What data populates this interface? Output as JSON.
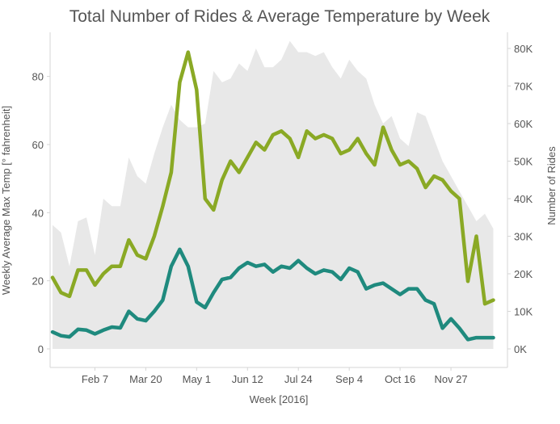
{
  "chart_data": {
    "type": "line",
    "title": "Total Number of Rides & Average Temperature by Week",
    "xlabel": "Week [2016]",
    "ylabel_left": "Weekly Average Max Temp [° fahrenheit]",
    "ylabel_right": "Number of Rides",
    "x_tick_labels": [
      "Feb 7",
      "Mar 20",
      "May 1",
      "Jun 12",
      "Jul 24",
      "Sep 4",
      "Oct 16",
      "Nov 27"
    ],
    "x_tick_weeks": [
      5,
      11,
      17,
      23,
      29,
      35,
      41,
      47
    ],
    "y_left_ticks": [
      0,
      20,
      40,
      60,
      80
    ],
    "y_left_range": [
      0,
      92
    ],
    "y_right_ticks": [
      "0K",
      "10K",
      "20K",
      "30K",
      "40K",
      "50K",
      "60K",
      "70K",
      "80K"
    ],
    "y_right_tick_values": [
      0,
      10000,
      20000,
      30000,
      40000,
      50000,
      60000,
      70000,
      80000
    ],
    "y_right_range": [
      0,
      80000
    ],
    "grid": false,
    "week_range": [
      0,
      53
    ],
    "series": [
      {
        "axis": "right",
        "kind": "area",
        "color": "#e8e8e8",
        "x": [
          0,
          1,
          2,
          3,
          4,
          5,
          6,
          7,
          8,
          9,
          10,
          11,
          12,
          13,
          14,
          15,
          16,
          17,
          18,
          19,
          20,
          21,
          22,
          23,
          24,
          25,
          26,
          27,
          28,
          29,
          30,
          31,
          32,
          33,
          34,
          35,
          36,
          37,
          38,
          39,
          40,
          41,
          42,
          43,
          44,
          45,
          46,
          47,
          48,
          49,
          50,
          51,
          52
        ],
        "values": [
          33000,
          31000,
          22000,
          34000,
          35000,
          25000,
          40000,
          38000,
          38000,
          51000,
          46000,
          44000,
          52000,
          59000,
          65000,
          61000,
          59000,
          59000,
          60000,
          74000,
          71000,
          72000,
          76000,
          74000,
          80000,
          75000,
          75000,
          77000,
          82000,
          79000,
          79000,
          78000,
          79000,
          75000,
          72000,
          77000,
          74000,
          72000,
          65000,
          60000,
          62000,
          56000,
          54000,
          63000,
          62000,
          56000,
          50000,
          46000,
          42000,
          38000,
          34000,
          36000,
          32000
        ]
      },
      {
        "axis": "right",
        "kind": "line",
        "color": "#8aa925",
        "x": [
          0,
          1,
          2,
          3,
          4,
          5,
          6,
          7,
          8,
          9,
          10,
          11,
          12,
          13,
          14,
          15,
          16,
          17,
          18,
          19,
          20,
          21,
          22,
          23,
          24,
          25,
          26,
          27,
          28,
          29,
          30,
          31,
          32,
          33,
          34,
          35,
          36,
          37,
          38,
          39,
          40,
          41,
          42,
          43,
          44,
          45,
          46,
          47,
          48,
          49,
          50,
          51,
          52
        ],
        "values": [
          19000,
          15000,
          14000,
          21000,
          21000,
          17000,
          20000,
          22000,
          22000,
          29000,
          25000,
          24000,
          30000,
          38000,
          47000,
          71000,
          79000,
          69000,
          40000,
          37000,
          45000,
          50000,
          47000,
          51000,
          55000,
          53000,
          57000,
          58000,
          56000,
          51000,
          58000,
          56000,
          57000,
          56000,
          52000,
          53000,
          56000,
          52000,
          49000,
          59000,
          53000,
          49000,
          50000,
          48000,
          43000,
          46000,
          45000,
          42000,
          40000,
          18000,
          30000,
          12000,
          13000
        ]
      },
      {
        "axis": "right",
        "kind": "line",
        "color": "#1f8a7e",
        "x": [
          0,
          1,
          2,
          3,
          4,
          5,
          6,
          7,
          8,
          9,
          10,
          11,
          12,
          13,
          14,
          15,
          16,
          17,
          18,
          19,
          20,
          21,
          22,
          23,
          24,
          25,
          26,
          27,
          28,
          29,
          30,
          31,
          32,
          33,
          34,
          35,
          36,
          37,
          38,
          39,
          40,
          41,
          42,
          43,
          44,
          45,
          46,
          47,
          48,
          49,
          50,
          51,
          52
        ],
        "values": [
          4500,
          3500,
          3200,
          5200,
          5000,
          4000,
          5000,
          5800,
          5600,
          10000,
          8000,
          7500,
          10000,
          13000,
          22000,
          26500,
          22000,
          12500,
          11000,
          15000,
          18500,
          19000,
          21500,
          23000,
          22000,
          22500,
          20500,
          22000,
          21500,
          23500,
          21500,
          20000,
          21000,
          20500,
          18500,
          21500,
          20500,
          16000,
          17000,
          17500,
          16000,
          14500,
          16000,
          16000,
          13000,
          12000,
          5500,
          8000,
          5500,
          2500,
          3000,
          3000,
          3000
        ]
      }
    ]
  }
}
